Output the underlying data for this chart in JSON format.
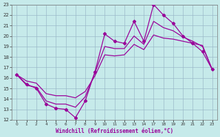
{
  "background_color": "#c6eaea",
  "grid_color": "#9ab8c8",
  "line_color": "#990099",
  "xlabel": "Windchill (Refroidissement éolien,°C)",
  "xlabel_color": "#990099",
  "ylim": [
    12,
    23
  ],
  "yticks": [
    12,
    13,
    14,
    15,
    16,
    17,
    18,
    19,
    20,
    21,
    22,
    23
  ],
  "x_labels": [
    "0",
    "1",
    "2",
    "4",
    "5",
    "6",
    "7",
    "8",
    "9",
    "10",
    "11",
    "12",
    "13",
    "14",
    "17",
    "18",
    "19",
    "20",
    "21",
    "22",
    "23"
  ],
  "y_line1": [
    16.3,
    15.4,
    15.0,
    13.5,
    13.1,
    13.0,
    12.2,
    13.8,
    16.6,
    20.2,
    19.5,
    19.3,
    21.4,
    19.5,
    23.0,
    22.0,
    21.2,
    20.0,
    19.3,
    18.5,
    16.8
  ],
  "y_line2": [
    16.3,
    15.3,
    15.1,
    13.8,
    13.5,
    13.5,
    13.2,
    14.2,
    16.5,
    19.0,
    18.8,
    18.8,
    20.0,
    19.2,
    21.4,
    20.8,
    20.5,
    19.9,
    19.5,
    19.0,
    16.8
  ],
  "y_line3": [
    16.3,
    15.7,
    15.5,
    14.5,
    14.3,
    14.3,
    14.1,
    14.7,
    16.2,
    18.2,
    18.1,
    18.2,
    19.2,
    18.7,
    20.1,
    19.8,
    19.7,
    19.5,
    19.3,
    19.1,
    16.8
  ]
}
